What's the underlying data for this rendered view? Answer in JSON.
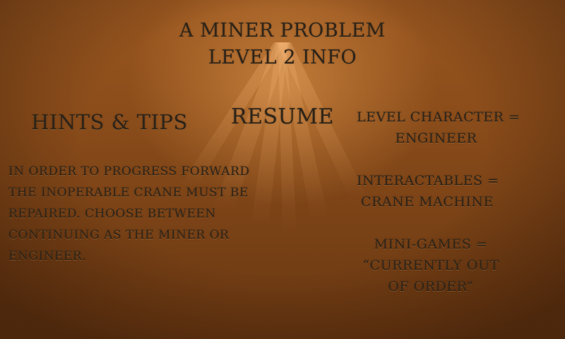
{
  "title": {
    "line1": "A Miner Problem",
    "line2": "Level 2 Info"
  },
  "hints": {
    "heading": "Hints & Tips",
    "lines": [
      "In order to progress forward",
      "the inoperable crane must be",
      "repaired. Choose between",
      "continuing as the miner or",
      "engineer."
    ]
  },
  "resume": {
    "label": "Resume"
  },
  "info": {
    "character": [
      "Level Character =",
      "Engineer"
    ],
    "interactables": [
      "Interactables =",
      "Crane Machine"
    ],
    "minigames": [
      "Mini-Games =",
      "“Currently out",
      "of order”"
    ]
  },
  "colors": {
    "background": "#8a4c1a",
    "text": "#2e2418",
    "glow": "#eba050"
  }
}
